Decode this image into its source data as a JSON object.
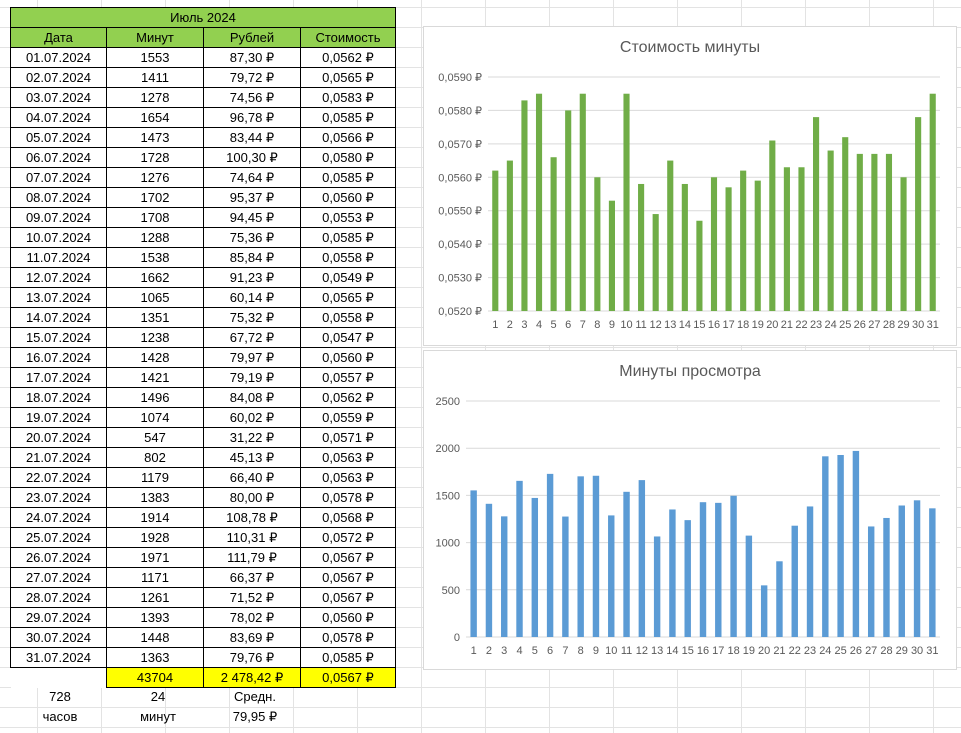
{
  "sheet": {
    "title": "Июль 2024",
    "headers": [
      "Дата",
      "Минут",
      "Рублей",
      "Стоимость"
    ],
    "rows": [
      [
        "01.07.2024",
        "1553",
        "87,30 ₽",
        "0,0562 ₽"
      ],
      [
        "02.07.2024",
        "1411",
        "79,72 ₽",
        "0,0565 ₽"
      ],
      [
        "03.07.2024",
        "1278",
        "74,56 ₽",
        "0,0583 ₽"
      ],
      [
        "04.07.2024",
        "1654",
        "96,78 ₽",
        "0,0585 ₽"
      ],
      [
        "05.07.2024",
        "1473",
        "83,44 ₽",
        "0,0566 ₽"
      ],
      [
        "06.07.2024",
        "1728",
        "100,30 ₽",
        "0,0580 ₽"
      ],
      [
        "07.07.2024",
        "1276",
        "74,64 ₽",
        "0,0585 ₽"
      ],
      [
        "08.07.2024",
        "1702",
        "95,37 ₽",
        "0,0560 ₽"
      ],
      [
        "09.07.2024",
        "1708",
        "94,45 ₽",
        "0,0553 ₽"
      ],
      [
        "10.07.2024",
        "1288",
        "75,36 ₽",
        "0,0585 ₽"
      ],
      [
        "11.07.2024",
        "1538",
        "85,84 ₽",
        "0,0558 ₽"
      ],
      [
        "12.07.2024",
        "1662",
        "91,23 ₽",
        "0,0549 ₽"
      ],
      [
        "13.07.2024",
        "1065",
        "60,14 ₽",
        "0,0565 ₽"
      ],
      [
        "14.07.2024",
        "1351",
        "75,32 ₽",
        "0,0558 ₽"
      ],
      [
        "15.07.2024",
        "1238",
        "67,72 ₽",
        "0,0547 ₽"
      ],
      [
        "16.07.2024",
        "1428",
        "79,97 ₽",
        "0,0560 ₽"
      ],
      [
        "17.07.2024",
        "1421",
        "79,19 ₽",
        "0,0557 ₽"
      ],
      [
        "18.07.2024",
        "1496",
        "84,08 ₽",
        "0,0562 ₽"
      ],
      [
        "19.07.2024",
        "1074",
        "60,02 ₽",
        "0,0559 ₽"
      ],
      [
        "20.07.2024",
        "547",
        "31,22 ₽",
        "0,0571 ₽"
      ],
      [
        "21.07.2024",
        "802",
        "45,13 ₽",
        "0,0563 ₽"
      ],
      [
        "22.07.2024",
        "1179",
        "66,40 ₽",
        "0,0563 ₽"
      ],
      [
        "23.07.2024",
        "1383",
        "80,00 ₽",
        "0,0578 ₽"
      ],
      [
        "24.07.2024",
        "1914",
        "108,78 ₽",
        "0,0568 ₽"
      ],
      [
        "25.07.2024",
        "1928",
        "110,31 ₽",
        "0,0572 ₽"
      ],
      [
        "26.07.2024",
        "1971",
        "111,79 ₽",
        "0,0567 ₽"
      ],
      [
        "27.07.2024",
        "1171",
        "66,37 ₽",
        "0,0567 ₽"
      ],
      [
        "28.07.2024",
        "1261",
        "71,52 ₽",
        "0,0567 ₽"
      ],
      [
        "29.07.2024",
        "1393",
        "78,02 ₽",
        "0,0560 ₽"
      ],
      [
        "30.07.2024",
        "1448",
        "83,69 ₽",
        "0,0578 ₽"
      ],
      [
        "31.07.2024",
        "1363",
        "79,76 ₽",
        "0,0585 ₽"
      ]
    ],
    "totals": {
      "minutes": "43704",
      "rubles": "2 478,42 ₽",
      "cost": "0,0567 ₽"
    },
    "extra": {
      "hours_value": "728",
      "minutes_value": "24",
      "avg_label": "Средн.",
      "hours_label": "часов",
      "minutes_label": "минут",
      "avg_value": "79,95 ₽"
    }
  },
  "colors": {
    "header_green": "#92d050",
    "total_yellow": "#ffff00",
    "bar_green": "#70ad47",
    "bar_blue": "#5b9bd5"
  },
  "chart_data": [
    {
      "type": "bar",
      "title": "Стоимость минуты",
      "categories": [
        "1",
        "2",
        "3",
        "4",
        "5",
        "6",
        "7",
        "8",
        "9",
        "10",
        "11",
        "12",
        "13",
        "14",
        "15",
        "16",
        "17",
        "18",
        "19",
        "20",
        "21",
        "22",
        "23",
        "24",
        "25",
        "26",
        "27",
        "28",
        "29",
        "30",
        "31"
      ],
      "values": [
        0.0562,
        0.0565,
        0.0583,
        0.0585,
        0.0566,
        0.058,
        0.0585,
        0.056,
        0.0553,
        0.0585,
        0.0558,
        0.0549,
        0.0565,
        0.0558,
        0.0547,
        0.056,
        0.0557,
        0.0562,
        0.0559,
        0.0571,
        0.0563,
        0.0563,
        0.0578,
        0.0568,
        0.0572,
        0.0567,
        0.0567,
        0.0567,
        0.056,
        0.0578,
        0.0585
      ],
      "ylim": [
        0.052,
        0.059
      ],
      "yticks": [
        "0,0520 ₽",
        "0,0530 ₽",
        "0,0540 ₽",
        "0,0550 ₽",
        "0,0560 ₽",
        "0,0570 ₽",
        "0,0580 ₽",
        "0,0590 ₽"
      ]
    },
    {
      "type": "bar",
      "title": "Минуты просмотра",
      "categories": [
        "1",
        "2",
        "3",
        "4",
        "5",
        "6",
        "7",
        "8",
        "9",
        "10",
        "11",
        "12",
        "13",
        "14",
        "15",
        "16",
        "17",
        "18",
        "19",
        "20",
        "21",
        "22",
        "23",
        "24",
        "25",
        "26",
        "27",
        "28",
        "29",
        "30",
        "31"
      ],
      "values": [
        1553,
        1411,
        1278,
        1654,
        1473,
        1728,
        1276,
        1702,
        1708,
        1288,
        1538,
        1662,
        1065,
        1351,
        1238,
        1428,
        1421,
        1496,
        1074,
        547,
        802,
        1179,
        1383,
        1914,
        1928,
        1971,
        1171,
        1261,
        1393,
        1448,
        1363
      ],
      "ylim": [
        0,
        2500
      ],
      "yticks": [
        "0",
        "500",
        "1000",
        "1500",
        "2000",
        "2500"
      ]
    }
  ]
}
